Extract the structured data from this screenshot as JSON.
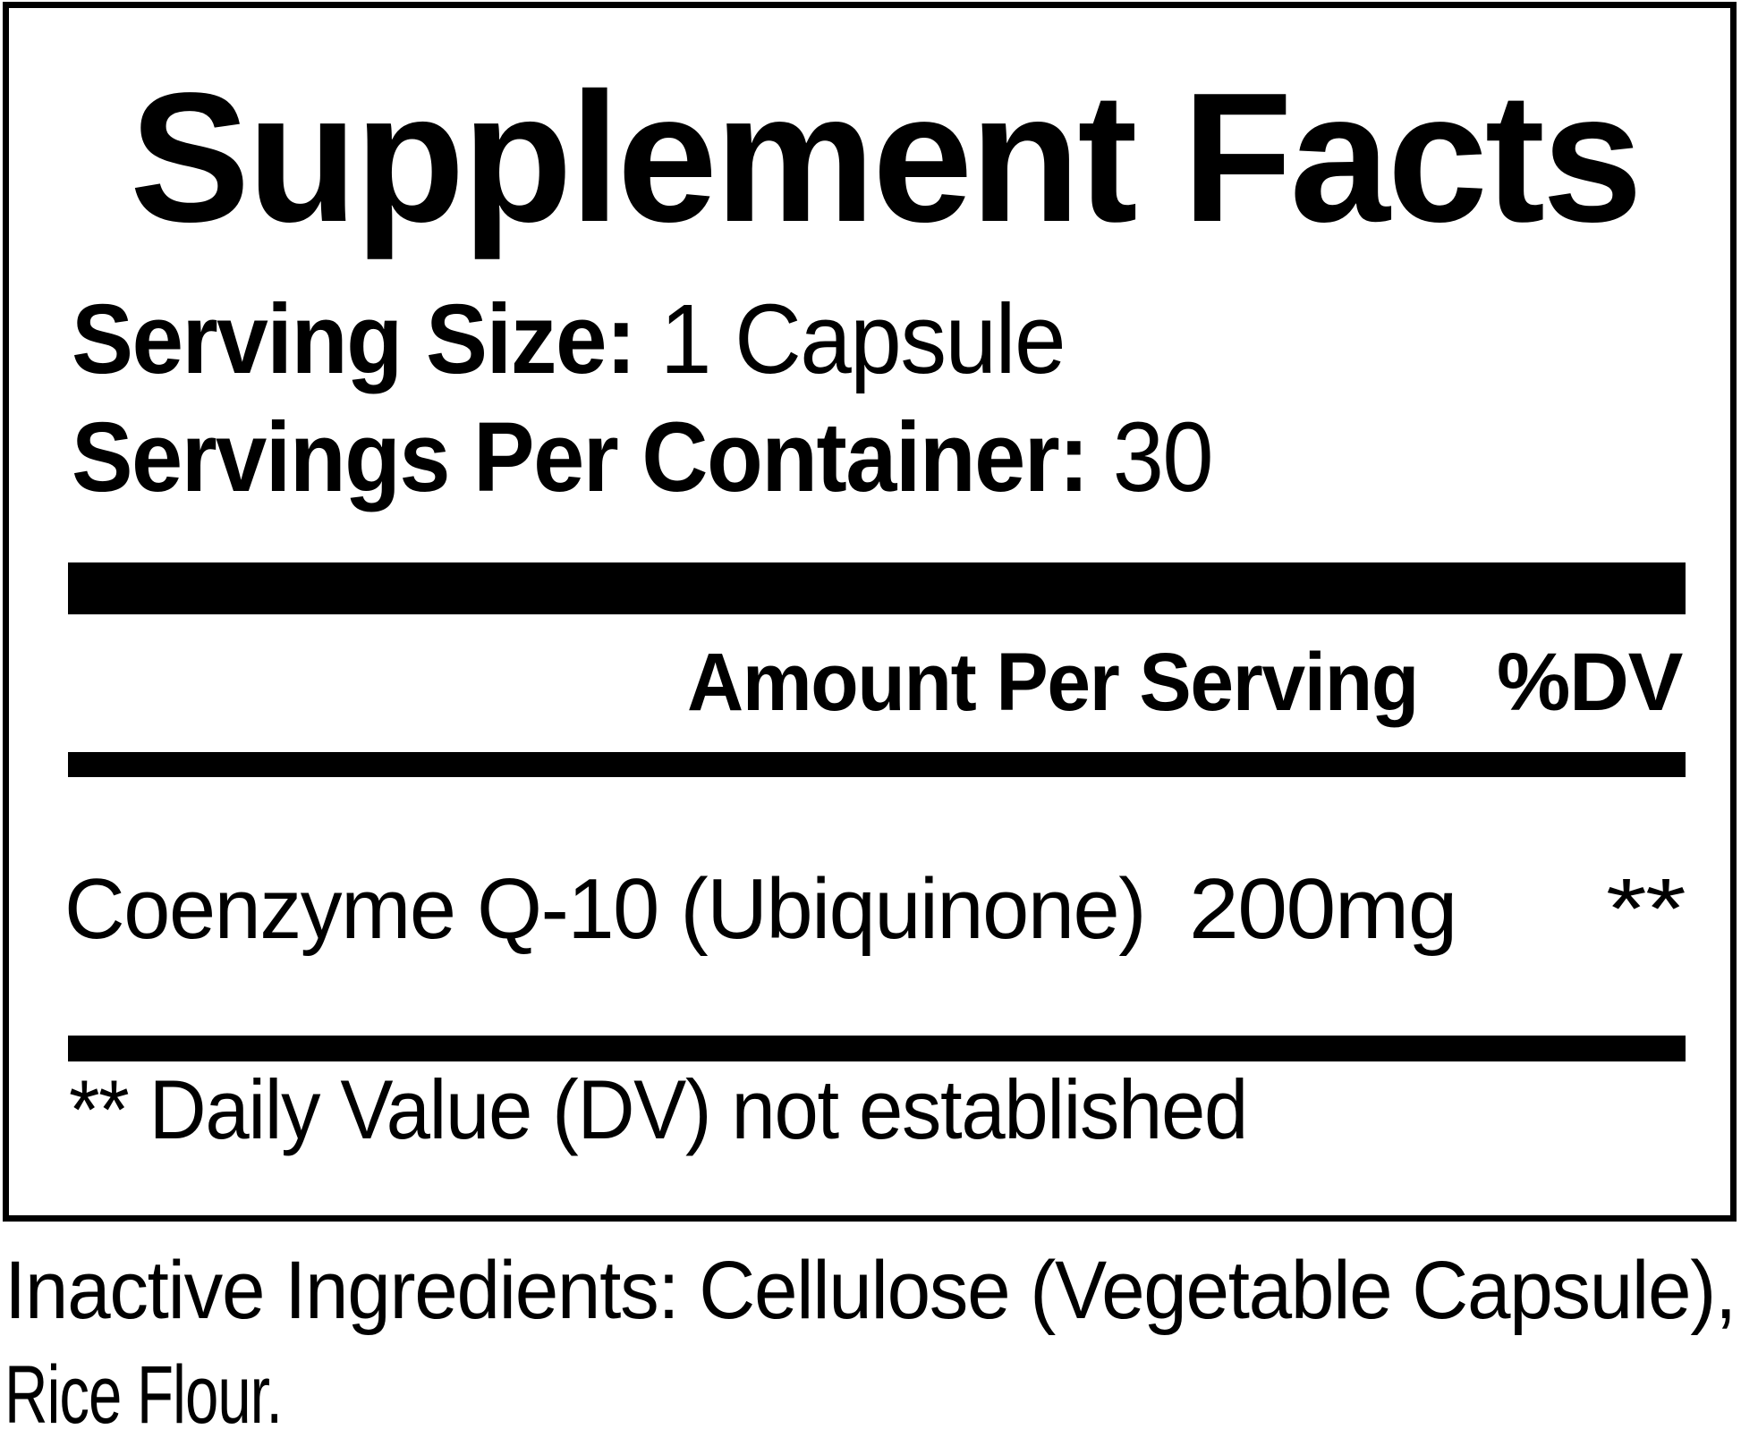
{
  "page": {
    "background_color": "#ffffff",
    "text_color": "#000000"
  },
  "label": {
    "title": "Supplement Facts",
    "serving_size": {
      "label": "Serving Size:",
      "value": "1 Capsule"
    },
    "servings_per_container": {
      "label": "Servings Per Container:",
      "value": "30"
    },
    "table": {
      "amount_header": "Amount Per Serving",
      "dv_header": "%DV",
      "rows": [
        {
          "name": "Coenzyme Q-10 (Ubiquinone)",
          "amount": "200mg",
          "dv": "**"
        }
      ]
    },
    "footnote": "** Daily Value (DV) not established",
    "inactive_ingredients_lines": [
      "Inactive Ingredients: Cellulose (Vegetable Capsule),",
      "Rice Flour."
    ]
  }
}
